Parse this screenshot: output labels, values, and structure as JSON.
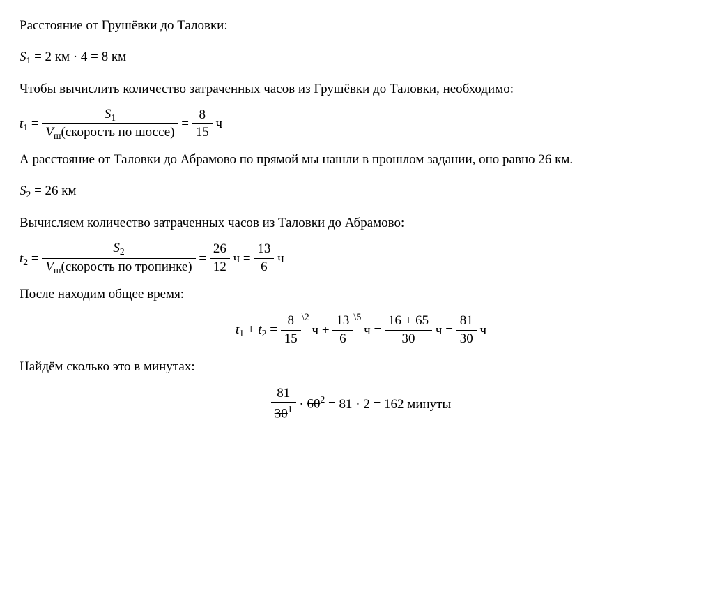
{
  "text": {
    "p1": "Расстояние от Грушёвки до Таловки:",
    "p2": "Чтобы вычислить количество затраченных часов из Грушёвки до Таловки, необходимо:",
    "p3": "А расстояние от Таловки до Абрамово по прямой мы нашли в прошлом задании, оно равно 26 км.",
    "p4": "Вычисляем количество затраченных часов из Таловки до Абрамово:",
    "p5": "После находим общее время:",
    "p6": "Найдём сколько это в минутах:"
  },
  "eq1": {
    "var": "S",
    "sub": "1",
    "rhs1": "= 2 км  · 4 = 8 км"
  },
  "eq2": {
    "var": "t",
    "sub": "1",
    "num": "S",
    "num_sub": "1",
    "den_var": "V",
    "den_sub": "ш",
    "den_text": "(скорость по шоссе)",
    "val_num": "8",
    "val_den": "15",
    "unit": " ч"
  },
  "eq3": {
    "var": "S",
    "sub": "2",
    "rhs": "= 26 км"
  },
  "eq4": {
    "var": "t",
    "sub": "2",
    "num": "S",
    "num_sub": "2",
    "den_var": "V",
    "den_sub": "ш",
    "den_text": "(скорость по тропинке)",
    "val_num": "26",
    "val_den": "12",
    "unit1": " ч =",
    "val2_num": "13",
    "val2_den": "6",
    "unit2": " ч"
  },
  "eq5": {
    "t1": "t",
    "t1_sub": "1",
    "t2": "t",
    "t2_sub": "2",
    "f1_num": "8",
    "f1_exp": "\\2",
    "f1_den": "15",
    "u1": "  ч +",
    "f2_num": "13",
    "f2_exp": "\\5",
    "f2_den": "6",
    "u2": "  ч =",
    "f3_num": "16 + 65",
    "f3_den": "30",
    "u3": " ч =",
    "f4_num": "81",
    "f4_den": "30",
    "u4": " ч"
  },
  "eq6": {
    "f1_num": "81",
    "f1_den": "30",
    "f1_den_sup": "1",
    "dot": " ·",
    "sixty": "60",
    "sixty_sup": "2",
    "tail": " =  81  · 2 = 162 минуты"
  },
  "style": {
    "text_color": "#000000",
    "background": "#ffffff",
    "font_family": "Times New Roman",
    "font_size_pt": 14
  }
}
